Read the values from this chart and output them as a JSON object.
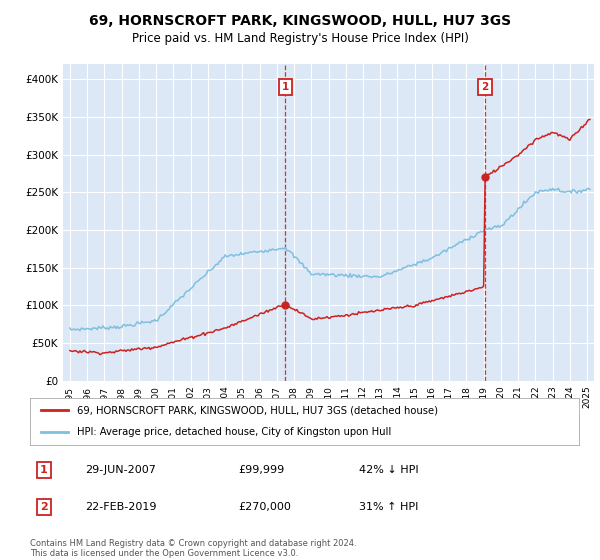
{
  "title": "69, HORNSCROFT PARK, KINGSWOOD, HULL, HU7 3GS",
  "subtitle": "Price paid vs. HM Land Registry's House Price Index (HPI)",
  "ylabel_ticks": [
    "£0",
    "£50K",
    "£100K",
    "£150K",
    "£200K",
    "£250K",
    "£300K",
    "£350K",
    "£400K"
  ],
  "ytick_values": [
    0,
    50000,
    100000,
    150000,
    200000,
    250000,
    300000,
    350000,
    400000
  ],
  "ylim": [
    0,
    420000
  ],
  "background_color": "#dce8f5",
  "grid_color": "#ffffff",
  "line_color_hpi": "#7fbfdf",
  "line_color_price": "#cc2222",
  "sale1_year_f": 2007.5,
  "sale1_price": 99999,
  "sale1_date": "29-JUN-2007",
  "sale1_pct": "42% ↓ HPI",
  "sale2_year_f": 2019.08,
  "sale2_price": 270000,
  "sale2_date": "22-FEB-2019",
  "sale2_pct": "31% ↑ HPI",
  "legend_label1": "69, HORNSCROFT PARK, KINGSWOOD, HULL, HU7 3GS (detached house)",
  "legend_label2": "HPI: Average price, detached house, City of Kingston upon Hull",
  "footnote": "Contains HM Land Registry data © Crown copyright and database right 2024.\nThis data is licensed under the Open Government Licence v3.0."
}
